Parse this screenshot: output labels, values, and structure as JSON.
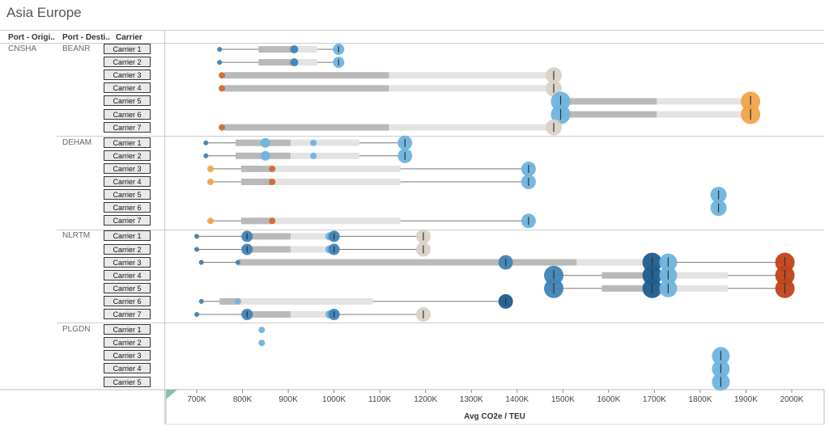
{
  "title": "Asia Europe",
  "headers": {
    "origin": "Port - Origi..",
    "dest": "Port - Desti..",
    "carrier": "Carrier"
  },
  "chart_data": {
    "type": "scatter",
    "x_label": "Avg CO2e / TEU",
    "x_range": [
      650000,
      2050000
    ],
    "x_ticks": [
      "700K",
      "800K",
      "900K",
      "1000K",
      "1100K",
      "1200K",
      "1300K",
      "1400K",
      "1500K",
      "1600K",
      "1700K",
      "1800K",
      "1900K",
      "2000K"
    ],
    "x_tick_values": [
      700000,
      800000,
      900000,
      1000000,
      1100000,
      1200000,
      1300000,
      1400000,
      1500000,
      1600000,
      1700000,
      1800000,
      1900000,
      2000000
    ],
    "colors": {
      "light_blue": "#6fb3dd",
      "mid_blue": "#3f84b7",
      "dark_blue": "#1f5d8d",
      "orange": "#f0a44a",
      "dark_orange": "#d16a2c",
      "red_orange": "#c0421a",
      "beige": "#d9d2c8"
    },
    "groups": [
      {
        "origin": "CNSHA",
        "dest": "BEANR",
        "rows": [
          {
            "carrier": "Carrier 1",
            "min": 750000,
            "q1": 835000,
            "median": 913000,
            "q3": 963000,
            "max": 1010000,
            "points": [
              {
                "x": 750000,
                "c": "mid_blue",
                "s": 3
              },
              {
                "x": 913000,
                "c": "mid_blue",
                "s": 5
              },
              {
                "x": 1010000,
                "c": "light_blue",
                "s": 7
              }
            ]
          },
          {
            "carrier": "Carrier 2",
            "min": 750000,
            "q1": 835000,
            "median": 913000,
            "q3": 963000,
            "max": 1010000,
            "points": [
              {
                "x": 750000,
                "c": "mid_blue",
                "s": 3
              },
              {
                "x": 913000,
                "c": "mid_blue",
                "s": 5
              },
              {
                "x": 1010000,
                "c": "light_blue",
                "s": 7
              }
            ]
          },
          {
            "carrier": "Carrier 3",
            "min": 755000,
            "q1": 760000,
            "median": 1120000,
            "q3": 1480000,
            "max": 1480000,
            "points": [
              {
                "x": 755000,
                "c": "dark_orange",
                "s": 4
              },
              {
                "x": 1480000,
                "c": "beige",
                "s": 10
              }
            ]
          },
          {
            "carrier": "Carrier 4",
            "min": 755000,
            "q1": 760000,
            "median": 1120000,
            "q3": 1480000,
            "max": 1480000,
            "points": [
              {
                "x": 755000,
                "c": "dark_orange",
                "s": 4
              },
              {
                "x": 1480000,
                "c": "beige",
                "s": 10
              }
            ]
          },
          {
            "carrier": "Carrier 5",
            "min": 1495000,
            "q1": 1495000,
            "median": 1705000,
            "q3": 1910000,
            "max": 1910000,
            "points": [
              {
                "x": 1495000,
                "c": "light_blue",
                "s": 12
              },
              {
                "x": 1910000,
                "c": "orange",
                "s": 12
              }
            ]
          },
          {
            "carrier": "Carrier 6",
            "min": 1495000,
            "q1": 1495000,
            "median": 1705000,
            "q3": 1910000,
            "max": 1910000,
            "points": [
              {
                "x": 1495000,
                "c": "light_blue",
                "s": 12
              },
              {
                "x": 1910000,
                "c": "orange",
                "s": 12
              }
            ]
          },
          {
            "carrier": "Carrier 7",
            "min": 755000,
            "q1": 760000,
            "median": 1120000,
            "q3": 1480000,
            "max": 1480000,
            "points": [
              {
                "x": 755000,
                "c": "dark_orange",
                "s": 4
              },
              {
                "x": 1480000,
                "c": "beige",
                "s": 10
              }
            ]
          }
        ]
      },
      {
        "origin": "",
        "dest": "DEHAM",
        "rows": [
          {
            "carrier": "Carrier 1",
            "min": 720000,
            "q1": 785000,
            "median": 905000,
            "q3": 1055000,
            "max": 1155000,
            "points": [
              {
                "x": 720000,
                "c": "mid_blue",
                "s": 3
              },
              {
                "x": 850000,
                "c": "light_blue",
                "s": 6
              },
              {
                "x": 955000,
                "c": "light_blue",
                "s": 4
              },
              {
                "x": 1155000,
                "c": "light_blue",
                "s": 9
              }
            ]
          },
          {
            "carrier": "Carrier 2",
            "min": 720000,
            "q1": 785000,
            "median": 905000,
            "q3": 1055000,
            "max": 1155000,
            "points": [
              {
                "x": 720000,
                "c": "mid_blue",
                "s": 3
              },
              {
                "x": 850000,
                "c": "light_blue",
                "s": 6
              },
              {
                "x": 955000,
                "c": "light_blue",
                "s": 4
              },
              {
                "x": 1155000,
                "c": "light_blue",
                "s": 9
              }
            ]
          },
          {
            "carrier": "Carrier 3",
            "min": 730000,
            "q1": 797000,
            "median": 865000,
            "q3": 1145000,
            "max": 1425000,
            "points": [
              {
                "x": 730000,
                "c": "orange",
                "s": 4
              },
              {
                "x": 865000,
                "c": "dark_orange",
                "s": 4
              },
              {
                "x": 1425000,
                "c": "light_blue",
                "s": 9
              }
            ]
          },
          {
            "carrier": "Carrier 4",
            "min": 730000,
            "q1": 797000,
            "median": 865000,
            "q3": 1145000,
            "max": 1425000,
            "points": [
              {
                "x": 730000,
                "c": "orange",
                "s": 4
              },
              {
                "x": 865000,
                "c": "dark_orange",
                "s": 4
              },
              {
                "x": 1425000,
                "c": "light_blue",
                "s": 9
              }
            ]
          },
          {
            "carrier": "Carrier 5",
            "points": [
              {
                "x": 1840000,
                "c": "light_blue",
                "s": 10
              }
            ]
          },
          {
            "carrier": "Carrier 6",
            "points": [
              {
                "x": 1840000,
                "c": "light_blue",
                "s": 10
              }
            ]
          },
          {
            "carrier": "Carrier 7",
            "min": 730000,
            "q1": 797000,
            "median": 865000,
            "q3": 1145000,
            "max": 1425000,
            "points": [
              {
                "x": 730000,
                "c": "orange",
                "s": 4
              },
              {
                "x": 865000,
                "c": "dark_orange",
                "s": 4
              },
              {
                "x": 1425000,
                "c": "light_blue",
                "s": 9
              }
            ]
          }
        ]
      },
      {
        "origin": "",
        "dest": "NLRTM",
        "rows": [
          {
            "carrier": "Carrier 1",
            "min": 700000,
            "q1": 810000,
            "median": 905000,
            "q3": 1000000,
            "max": 1195000,
            "points": [
              {
                "x": 700000,
                "c": "mid_blue",
                "s": 3
              },
              {
                "x": 810000,
                "c": "mid_blue",
                "s": 7
              },
              {
                "x": 990000,
                "c": "light_blue",
                "s": 5
              },
              {
                "x": 1000000,
                "c": "mid_blue",
                "s": 7
              },
              {
                "x": 1195000,
                "c": "beige",
                "s": 9
              }
            ]
          },
          {
            "carrier": "Carrier 2",
            "min": 700000,
            "q1": 810000,
            "median": 905000,
            "q3": 1000000,
            "max": 1195000,
            "points": [
              {
                "x": 700000,
                "c": "mid_blue",
                "s": 3
              },
              {
                "x": 810000,
                "c": "mid_blue",
                "s": 7
              },
              {
                "x": 990000,
                "c": "light_blue",
                "s": 5
              },
              {
                "x": 1000000,
                "c": "mid_blue",
                "s": 7
              },
              {
                "x": 1195000,
                "c": "beige",
                "s": 9
              }
            ]
          },
          {
            "carrier": "Carrier 3",
            "min": 710000,
            "q1": 790000,
            "median": 1530000,
            "q3": 1730000,
            "max": 1985000,
            "points": [
              {
                "x": 710000,
                "c": "mid_blue",
                "s": 3
              },
              {
                "x": 790000,
                "c": "mid_blue",
                "s": 3
              },
              {
                "x": 1375000,
                "c": "mid_blue",
                "s": 9
              },
              {
                "x": 1695000,
                "c": "dark_blue",
                "s": 12
              },
              {
                "x": 1730000,
                "c": "light_blue",
                "s": 11
              },
              {
                "x": 1985000,
                "c": "red_orange",
                "s": 12
              }
            ]
          },
          {
            "carrier": "Carrier 4",
            "min": 1480000,
            "q1": 1585000,
            "median": 1730000,
            "q3": 1860000,
            "max": 1985000,
            "points": [
              {
                "x": 1480000,
                "c": "mid_blue",
                "s": 12
              },
              {
                "x": 1695000,
                "c": "dark_blue",
                "s": 12
              },
              {
                "x": 1730000,
                "c": "light_blue",
                "s": 11
              },
              {
                "x": 1985000,
                "c": "red_orange",
                "s": 12
              }
            ]
          },
          {
            "carrier": "Carrier 5",
            "min": 1480000,
            "q1": 1585000,
            "median": 1730000,
            "q3": 1860000,
            "max": 1985000,
            "points": [
              {
                "x": 1480000,
                "c": "mid_blue",
                "s": 12
              },
              {
                "x": 1695000,
                "c": "dark_blue",
                "s": 12
              },
              {
                "x": 1730000,
                "c": "light_blue",
                "s": 11
              },
              {
                "x": 1985000,
                "c": "red_orange",
                "s": 12
              }
            ]
          },
          {
            "carrier": "Carrier 6",
            "min": 710000,
            "q1": 750000,
            "median": 790000,
            "q3": 1085000,
            "max": 1375000,
            "points": [
              {
                "x": 710000,
                "c": "mid_blue",
                "s": 3
              },
              {
                "x": 790000,
                "c": "light_blue",
                "s": 4
              },
              {
                "x": 1375000,
                "c": "dark_blue",
                "s": 9
              }
            ]
          },
          {
            "carrier": "Carrier 7",
            "min": 700000,
            "q1": 810000,
            "median": 905000,
            "q3": 1000000,
            "max": 1195000,
            "points": [
              {
                "x": 700000,
                "c": "mid_blue",
                "s": 3
              },
              {
                "x": 810000,
                "c": "mid_blue",
                "s": 7
              },
              {
                "x": 990000,
                "c": "light_blue",
                "s": 5
              },
              {
                "x": 1000000,
                "c": "mid_blue",
                "s": 7
              },
              {
                "x": 1195000,
                "c": "beige",
                "s": 9
              }
            ]
          }
        ]
      },
      {
        "origin": "",
        "dest": "PLGDN",
        "rows": [
          {
            "carrier": "Carrier 1",
            "points": [
              {
                "x": 842000,
                "c": "light_blue",
                "s": 4
              }
            ]
          },
          {
            "carrier": "Carrier 2",
            "points": [
              {
                "x": 842000,
                "c": "light_blue",
                "s": 4
              }
            ]
          },
          {
            "carrier": "Carrier 3",
            "points": [
              {
                "x": 1845000,
                "c": "light_blue",
                "s": 11
              }
            ]
          },
          {
            "carrier": "Carrier 4",
            "points": [
              {
                "x": 1845000,
                "c": "light_blue",
                "s": 11
              }
            ]
          },
          {
            "carrier": "Carrier 5",
            "points": [
              {
                "x": 1845000,
                "c": "light_blue",
                "s": 11
              }
            ]
          }
        ]
      }
    ]
  }
}
